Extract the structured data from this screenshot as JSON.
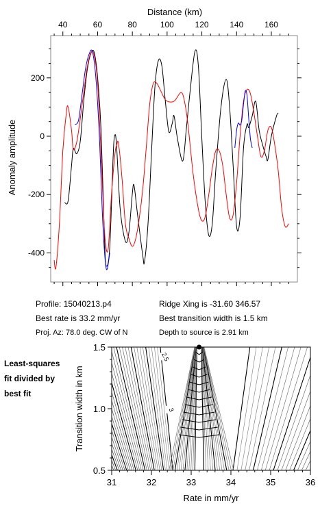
{
  "chart_data": [
    {
      "type": "line",
      "xlabel": "Distance (km)",
      "ylabel": "Anomaly amplitude",
      "xlim": [
        33,
        175
      ],
      "ylim": [
        -500,
        345
      ],
      "xticks": [
        40,
        60,
        80,
        100,
        120,
        140,
        160
      ],
      "yticks": [
        -400,
        -200,
        0,
        200
      ],
      "series": [
        {
          "color": "#000000",
          "points": [
            [
              41,
              -227
            ],
            [
              43,
              -222
            ],
            [
              45,
              -100
            ],
            [
              46,
              -42
            ],
            [
              48,
              -60
            ],
            [
              50,
              -18
            ],
            [
              52,
              120
            ],
            [
              54,
              225
            ],
            [
              56,
              282
            ],
            [
              58,
              288
            ],
            [
              60,
              200
            ],
            [
              62,
              20
            ],
            [
              64,
              -360
            ],
            [
              65,
              -445
            ],
            [
              67,
              -380
            ],
            [
              69,
              -60
            ],
            [
              70,
              5
            ],
            [
              71,
              -40
            ],
            [
              73,
              -250
            ],
            [
              76,
              -360
            ],
            [
              78,
              -330
            ],
            [
              80,
              -195
            ],
            [
              81,
              -170
            ],
            [
              83,
              -270
            ],
            [
              86,
              -410
            ],
            [
              87,
              -430
            ],
            [
              89,
              -300
            ],
            [
              91,
              -60
            ],
            [
              93,
              170
            ],
            [
              95,
              260
            ],
            [
              97,
              240
            ],
            [
              99,
              120
            ],
            [
              101,
              15
            ],
            [
              103,
              45
            ],
            [
              104,
              70
            ],
            [
              106,
              -10
            ],
            [
              109,
              -85
            ],
            [
              111,
              20
            ],
            [
              113,
              140
            ],
            [
              116,
              290
            ],
            [
              118,
              240
            ],
            [
              120,
              -10
            ],
            [
              122,
              -230
            ],
            [
              124,
              -340
            ],
            [
              126,
              -300
            ],
            [
              128,
              -120
            ],
            [
              131,
              100
            ],
            [
              134,
              195
            ],
            [
              136,
              100
            ],
            [
              138,
              -100
            ],
            [
              140,
              -310
            ],
            [
              142,
              -280
            ],
            [
              144,
              -40
            ],
            [
              146,
              40
            ],
            [
              147,
              30
            ],
            [
              149,
              70
            ],
            [
              151,
              120
            ],
            [
              153,
              20
            ],
            [
              155,
              -30
            ],
            [
              157,
              -70
            ],
            [
              158,
              -80
            ],
            [
              160,
              0
            ],
            [
              163,
              70
            ],
            [
              164,
              80
            ]
          ]
        },
        {
          "color": "#ff0000",
          "points": [
            [
              35,
              -425
            ],
            [
              36,
              -450
            ],
            [
              38,
              -300
            ],
            [
              40,
              -50
            ],
            [
              42,
              80
            ],
            [
              43,
              100
            ],
            [
              45,
              20
            ],
            [
              46,
              -45
            ],
            [
              48,
              -20
            ],
            [
              50,
              60
            ],
            [
              52,
              150
            ],
            [
              54,
              235
            ],
            [
              56,
              285
            ],
            [
              58,
              278
            ],
            [
              60,
              180
            ],
            [
              62,
              -60
            ],
            [
              64,
              -330
            ],
            [
              66,
              -390
            ],
            [
              68,
              -200
            ],
            [
              70,
              -60
            ],
            [
              71,
              -30
            ],
            [
              72,
              -25
            ],
            [
              74,
              -140
            ],
            [
              76,
              -300
            ],
            [
              78,
              -350
            ],
            [
              80,
              -378
            ],
            [
              82,
              -350
            ],
            [
              84,
              -280
            ],
            [
              86,
              -180
            ],
            [
              88,
              -40
            ],
            [
              90,
              110
            ],
            [
              92,
              180
            ],
            [
              94,
              182
            ],
            [
              96,
              160
            ],
            [
              98,
              135
            ],
            [
              100,
              120
            ],
            [
              104,
              120
            ],
            [
              108,
              150
            ],
            [
              110,
              120
            ],
            [
              112,
              40
            ],
            [
              115,
              -130
            ],
            [
              118,
              -250
            ],
            [
              120,
              -290
            ],
            [
              122,
              -275
            ],
            [
              124,
              -200
            ],
            [
              126,
              -110
            ],
            [
              128,
              -50
            ],
            [
              130,
              -50
            ],
            [
              132,
              -100
            ],
            [
              134,
              -200
            ],
            [
              136,
              -280
            ],
            [
              138,
              -270
            ],
            [
              140,
              -160
            ],
            [
              142,
              0
            ],
            [
              144,
              120
            ],
            [
              146,
              160
            ],
            [
              148,
              145
            ],
            [
              150,
              80
            ],
            [
              152,
              0
            ],
            [
              154,
              -70
            ],
            [
              156,
              -50
            ],
            [
              158,
              20
            ],
            [
              160,
              30
            ],
            [
              162,
              -30
            ],
            [
              164,
              -120
            ],
            [
              166,
              -250
            ],
            [
              168,
              -310
            ],
            [
              170,
              -300
            ]
          ]
        },
        {
          "color": "#0000ff",
          "points": [
            [
              47,
              40
            ],
            [
              49,
              55
            ],
            [
              51,
              140
            ],
            [
              53,
              230
            ],
            [
              55,
              280
            ],
            [
              57,
              290
            ],
            [
              59,
              200
            ],
            [
              61,
              0
            ],
            [
              63,
              -300
            ],
            [
              65,
              -455
            ],
            [
              67,
              -400
            ]
          ]
        },
        {
          "color": "#0000ff",
          "points": [
            [
              139,
              -40
            ],
            [
              140,
              20
            ],
            [
              141,
              45
            ],
            [
              142,
              38
            ],
            [
              143,
              55
            ],
            [
              144,
              110
            ],
            [
              145,
              155
            ],
            [
              146,
              140
            ],
            [
              147,
              60
            ],
            [
              148,
              -10
            ],
            [
              149,
              -40
            ]
          ]
        }
      ]
    },
    {
      "type": "heatmap",
      "xlabel": "Rate in mm/yr",
      "ylabel": "Transition width in km",
      "xlim": [
        31,
        36
      ],
      "ylim": [
        0.5,
        1.5
      ],
      "xticks": [
        31,
        32,
        33,
        34,
        35,
        36
      ],
      "yticks": [
        0.5,
        1.0,
        1.5
      ],
      "minimum": {
        "x": 33.2,
        "y": 1.5
      },
      "contour_labels": [
        {
          "text": "2.5",
          "x": 32.35,
          "y": 1.42
        },
        {
          "text": "3",
          "x": 32.5,
          "y": 0.99
        }
      ]
    }
  ],
  "info": {
    "profile": "Profile: 15040213.p4",
    "ridge": "Ridge Xing is -31.60 346.57",
    "rate": "Best rate is 33.2 mm/yr",
    "transition": "Best transition width is 1.5 km",
    "azimuth": "Proj. Az: 78.0 deg. CW of N",
    "depth": "Depth to source is    2.91 km"
  },
  "side_note": [
    "Least-squares",
    "fit divided by",
    "best fit"
  ]
}
